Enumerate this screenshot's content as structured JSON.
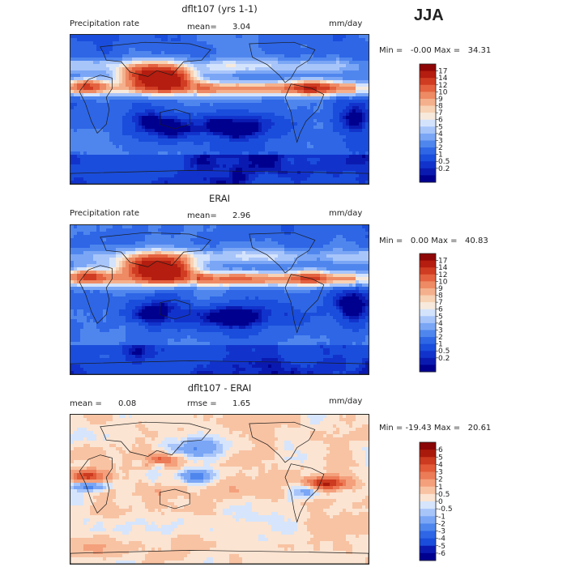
{
  "season": "JJA",
  "colors": {
    "abs_scale": [
      "#00008f",
      "#0a1ab0",
      "#1133cc",
      "#1a4ddb",
      "#2e66e6",
      "#4f86ee",
      "#7aa6f5",
      "#a8c5fa",
      "#d4e3fc",
      "#f7eadc",
      "#f7d2b4",
      "#f4b08c",
      "#ee8a64",
      "#e4623f",
      "#d03c22",
      "#b41d0f",
      "#8f0606"
    ],
    "diff_scale": [
      "#00008f",
      "#0a1ab0",
      "#1a4ddb",
      "#2e66e6",
      "#4f86ee",
      "#7aa6f5",
      "#a8c5fa",
      "#d6e5fc",
      "#fbe4d2",
      "#f8c3a3",
      "#f4a07c",
      "#ec7b57",
      "#e25a37",
      "#cc3a1f",
      "#aa1a0c",
      "#8a0505"
    ],
    "land_outline": "#1a1a1a"
  },
  "chart_data": [
    {
      "type": "heatmap",
      "title": "dflt107 (yrs 1-1)",
      "left_label": "Precipitation rate",
      "stat_label": "mean=",
      "stat_value": "3.04",
      "units": "mm/day",
      "range_text": "Min =   -0.00 Max =   34.31",
      "min": -0.0,
      "max": 34.31,
      "colorbar_levels": [
        "17",
        "14",
        "12",
        "10",
        "9",
        "8",
        "7",
        "6",
        "5",
        "4",
        "3",
        "2",
        "1",
        "0.5",
        "0.2"
      ]
    },
    {
      "type": "heatmap",
      "title": "ERAI",
      "left_label": "Precipitation rate",
      "stat_label": "mean=",
      "stat_value": "2.96",
      "units": "mm/day",
      "range_text": "Min =   0.00 Max =   40.83",
      "min": 0.0,
      "max": 40.83,
      "colorbar_levels": [
        "17",
        "14",
        "12",
        "10",
        "9",
        "8",
        "7",
        "6",
        "5",
        "4",
        "3",
        "2",
        "1",
        "0.5",
        "0.2"
      ]
    },
    {
      "type": "heatmap",
      "title": "dflt107 - ERAI",
      "mean_label": "mean =",
      "mean_value": "0.08",
      "rmse_label": "rmse =",
      "rmse_value": "1.65",
      "units": "mm/day",
      "range_text": "Min = -19.43 Max =   20.61",
      "min": -19.43,
      "max": 20.61,
      "colorbar_levels": [
        "6",
        "5",
        "4",
        "3",
        "2",
        "1",
        "0.5",
        "0",
        "-0.5",
        "-1",
        "-2",
        "-3",
        "-4",
        "-5",
        "-6"
      ]
    }
  ]
}
